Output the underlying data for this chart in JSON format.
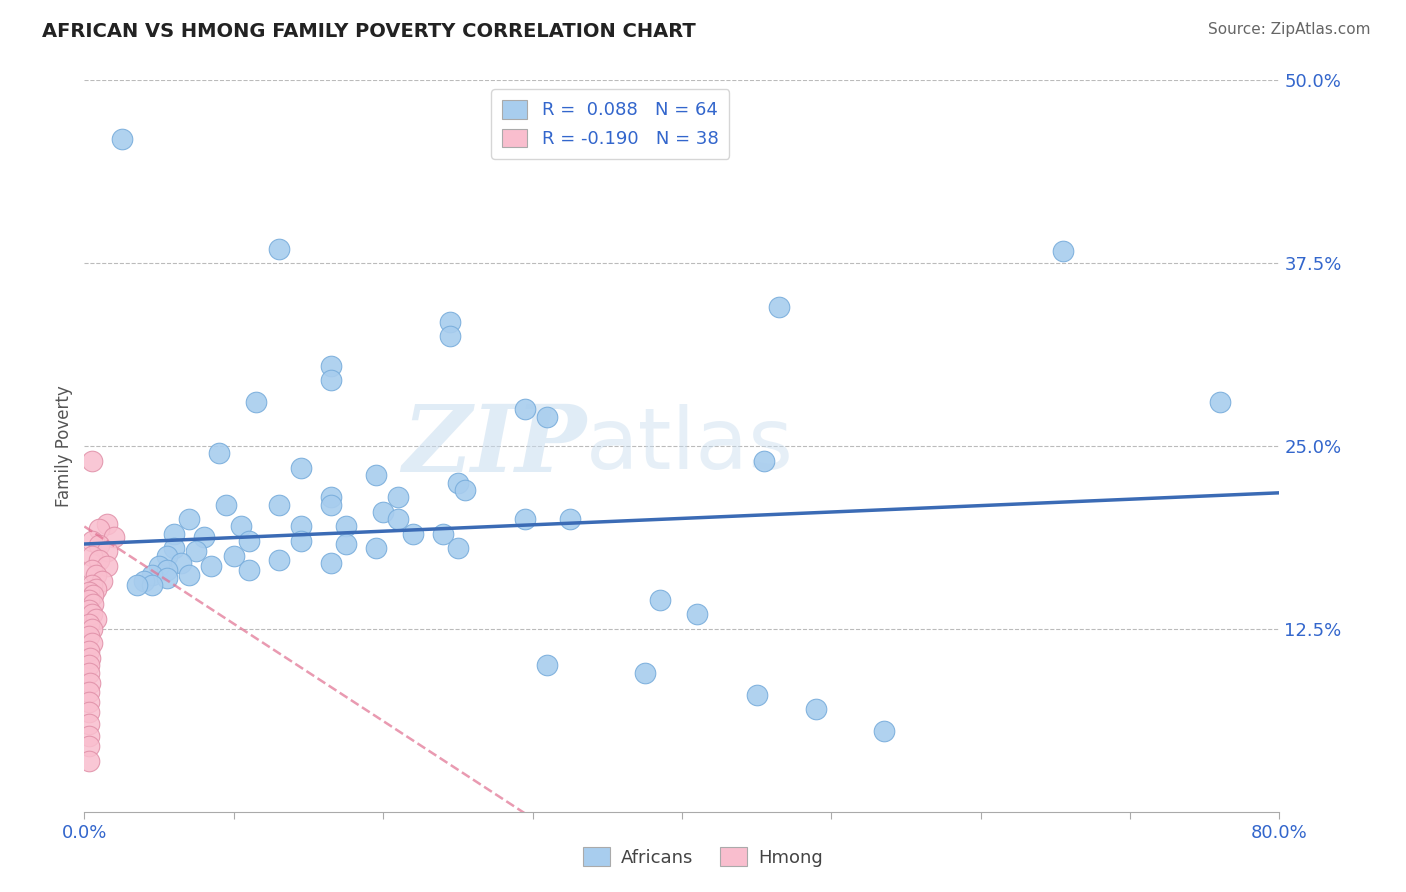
{
  "title": "AFRICAN VS HMONG FAMILY POVERTY CORRELATION CHART",
  "source": "Source: ZipAtlas.com",
  "ylabel": "Family Poverty",
  "xlim": [
    0.0,
    0.8
  ],
  "ylim": [
    0.0,
    0.5
  ],
  "xticks": [
    0.0,
    0.1,
    0.2,
    0.3,
    0.4,
    0.5,
    0.6,
    0.7,
    0.8
  ],
  "xticklabels": [
    "0.0%",
    "",
    "",
    "",
    "",
    "",
    "",
    "",
    "80.0%"
  ],
  "yticks": [
    0.0,
    0.125,
    0.25,
    0.375,
    0.5
  ],
  "yticklabels": [
    "",
    "12.5%",
    "25.0%",
    "37.5%",
    "50.0%"
  ],
  "grid_yticks": [
    0.125,
    0.25,
    0.375,
    0.5
  ],
  "african_R": 0.088,
  "african_N": 64,
  "hmong_R": -0.19,
  "hmong_N": 38,
  "african_color": "#A8CDEE",
  "african_line_color": "#3B6BB5",
  "hmong_color": "#F9BECE",
  "hmong_line_color": "#E07090",
  "watermark_zip": "ZIP",
  "watermark_atlas": "atlas",
  "african_points": [
    [
      0.025,
      0.46
    ],
    [
      0.13,
      0.385
    ],
    [
      0.655,
      0.383
    ],
    [
      0.245,
      0.335
    ],
    [
      0.245,
      0.325
    ],
    [
      0.465,
      0.345
    ],
    [
      0.165,
      0.305
    ],
    [
      0.165,
      0.295
    ],
    [
      0.115,
      0.28
    ],
    [
      0.295,
      0.275
    ],
    [
      0.455,
      0.24
    ],
    [
      0.31,
      0.27
    ],
    [
      0.09,
      0.245
    ],
    [
      0.145,
      0.235
    ],
    [
      0.195,
      0.23
    ],
    [
      0.25,
      0.225
    ],
    [
      0.255,
      0.22
    ],
    [
      0.76,
      0.28
    ],
    [
      0.165,
      0.215
    ],
    [
      0.21,
      0.215
    ],
    [
      0.095,
      0.21
    ],
    [
      0.13,
      0.21
    ],
    [
      0.165,
      0.21
    ],
    [
      0.2,
      0.205
    ],
    [
      0.21,
      0.2
    ],
    [
      0.295,
      0.2
    ],
    [
      0.325,
      0.2
    ],
    [
      0.07,
      0.2
    ],
    [
      0.105,
      0.195
    ],
    [
      0.145,
      0.195
    ],
    [
      0.175,
      0.195
    ],
    [
      0.22,
      0.19
    ],
    [
      0.24,
      0.19
    ],
    [
      0.06,
      0.19
    ],
    [
      0.08,
      0.188
    ],
    [
      0.11,
      0.185
    ],
    [
      0.145,
      0.185
    ],
    [
      0.175,
      0.183
    ],
    [
      0.195,
      0.18
    ],
    [
      0.25,
      0.18
    ],
    [
      0.06,
      0.18
    ],
    [
      0.075,
      0.178
    ],
    [
      0.1,
      0.175
    ],
    [
      0.13,
      0.172
    ],
    [
      0.165,
      0.17
    ],
    [
      0.055,
      0.175
    ],
    [
      0.065,
      0.17
    ],
    [
      0.085,
      0.168
    ],
    [
      0.11,
      0.165
    ],
    [
      0.05,
      0.168
    ],
    [
      0.055,
      0.165
    ],
    [
      0.07,
      0.162
    ],
    [
      0.045,
      0.162
    ],
    [
      0.055,
      0.16
    ],
    [
      0.04,
      0.158
    ],
    [
      0.045,
      0.155
    ],
    [
      0.035,
      0.155
    ],
    [
      0.385,
      0.145
    ],
    [
      0.41,
      0.135
    ],
    [
      0.31,
      0.1
    ],
    [
      0.375,
      0.095
    ],
    [
      0.45,
      0.08
    ],
    [
      0.49,
      0.07
    ],
    [
      0.535,
      0.055
    ]
  ],
  "hmong_points": [
    [
      0.005,
      0.24
    ],
    [
      0.015,
      0.197
    ],
    [
      0.01,
      0.193
    ],
    [
      0.02,
      0.188
    ],
    [
      0.005,
      0.185
    ],
    [
      0.01,
      0.182
    ],
    [
      0.015,
      0.178
    ],
    [
      0.005,
      0.175
    ],
    [
      0.01,
      0.172
    ],
    [
      0.015,
      0.168
    ],
    [
      0.005,
      0.165
    ],
    [
      0.008,
      0.162
    ],
    [
      0.012,
      0.158
    ],
    [
      0.005,
      0.155
    ],
    [
      0.008,
      0.152
    ],
    [
      0.003,
      0.15
    ],
    [
      0.006,
      0.148
    ],
    [
      0.003,
      0.145
    ],
    [
      0.006,
      0.142
    ],
    [
      0.003,
      0.138
    ],
    [
      0.005,
      0.135
    ],
    [
      0.008,
      0.132
    ],
    [
      0.003,
      0.128
    ],
    [
      0.005,
      0.125
    ],
    [
      0.003,
      0.12
    ],
    [
      0.005,
      0.115
    ],
    [
      0.003,
      0.11
    ],
    [
      0.004,
      0.105
    ],
    [
      0.003,
      0.1
    ],
    [
      0.003,
      0.095
    ],
    [
      0.004,
      0.088
    ],
    [
      0.003,
      0.082
    ],
    [
      0.003,
      0.075
    ],
    [
      0.003,
      0.068
    ],
    [
      0.003,
      0.06
    ],
    [
      0.003,
      0.052
    ],
    [
      0.003,
      0.045
    ],
    [
      0.003,
      0.035
    ]
  ]
}
